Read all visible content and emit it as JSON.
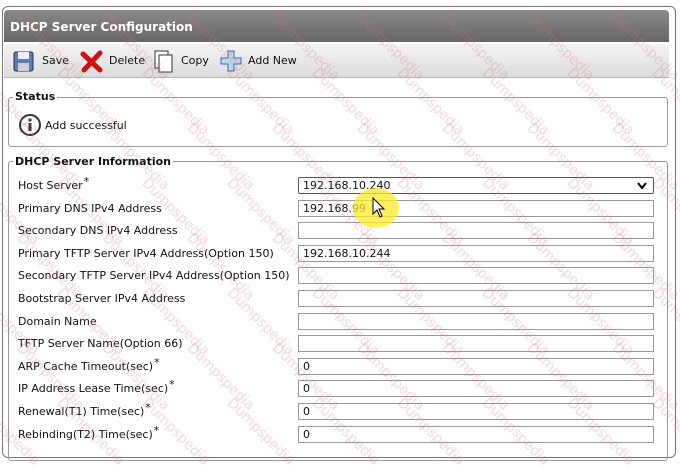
{
  "header": {
    "title": "DHCP Server Configuration"
  },
  "toolbar": {
    "buttons": [
      "Save",
      "Delete",
      "Copy",
      "Add New"
    ]
  },
  "status": {
    "legend": "Status",
    "message": "Add successful"
  },
  "form": {
    "legend": "DHCP Server Information",
    "fields": [
      {
        "label": "Host Server",
        "mark": "*",
        "value": "192.168.10.240",
        "control": "select"
      },
      {
        "label": "Primary DNS IPv4 Address",
        "value": "192.168.99",
        "control": "text"
      },
      {
        "label": "Secondary DNS IPv4 Address",
        "control": "text"
      },
      {
        "label": "Primary TFTP Server IPv4 Address(Option 150)",
        "value": "192.168.10.244",
        "control": "text"
      },
      {
        "label": "Secondary TFTP Server IPv4 Address(Option 150)",
        "control": "text"
      },
      {
        "label": "Bootstrap Server IPv4 Address",
        "control": "text"
      },
      {
        "label": "Domain Name",
        "control": "text"
      },
      {
        "label": "TFTP Server Name(Option 66)",
        "control": "text"
      },
      {
        "label": "ARP Cache Timeout(sec)",
        "mark": "*",
        "value": "0",
        "control": "text"
      },
      {
        "label": "IP Address Lease Time(sec)",
        "mark": "*",
        "value": "0",
        "control": "text"
      },
      {
        "label": "Renewal(T1) Time(sec)",
        "mark": "*",
        "value": "0",
        "control": "text"
      },
      {
        "label": "Rebinding(T2) Time(sec)",
        "mark": "*",
        "value": "0",
        "control": "text"
      }
    ]
  },
  "watermark": "Dumpspedia"
}
